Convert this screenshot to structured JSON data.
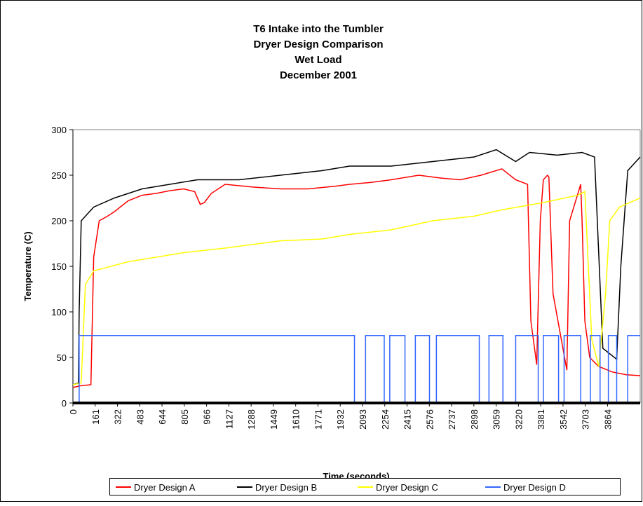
{
  "chart_data": {
    "type": "line",
    "title": [
      "T6 Intake into the Tumbler",
      "Dryer Design Comparison",
      "Wet Load",
      "December 2001"
    ],
    "x_label": "Time (seconds)",
    "y_label": "Temperature (C)",
    "xlim": [
      0,
      4100
    ],
    "xticks": [
      0,
      161,
      322,
      483,
      644,
      805,
      966,
      1127,
      1288,
      1449,
      1610,
      1771,
      1932,
      2093,
      2254,
      2415,
      2576,
      2737,
      2898,
      3059,
      3220,
      3381,
      3542,
      3703,
      3864
    ],
    "ylim": [
      0,
      300
    ],
    "yticks": [
      0,
      50,
      100,
      150,
      200,
      250,
      300
    ],
    "legend": "bottom",
    "series": [
      {
        "name": "Dryer Design A",
        "color": "#ff0000",
        "x": [
          0,
          60,
          130,
          150,
          190,
          250,
          300,
          400,
          500,
          600,
          700,
          800,
          880,
          920,
          950,
          1000,
          1100,
          1300,
          1500,
          1700,
          1900,
          2000,
          2150,
          2300,
          2500,
          2650,
          2800,
          2950,
          3100,
          3200,
          3286,
          3310,
          3352,
          3378,
          3400,
          3430,
          3440,
          3470,
          3570,
          3590,
          3670,
          3680,
          3700,
          3735,
          3800,
          3900,
          4000,
          4100
        ],
        "values": [
          17,
          19,
          20,
          160,
          200,
          205,
          210,
          222,
          228,
          230,
          233,
          235,
          232,
          218,
          220,
          230,
          240,
          237,
          235,
          235,
          238,
          240,
          242,
          245,
          250,
          247,
          245,
          250,
          257,
          245,
          240,
          90,
          42,
          200,
          245,
          250,
          248,
          120,
          36,
          200,
          240,
          200,
          90,
          50,
          40,
          34,
          31,
          30
        ]
      },
      {
        "name": "Dryer Design B",
        "color": "#000000",
        "x": [
          0,
          40,
          45,
          60,
          150,
          300,
          500,
          700,
          900,
          1200,
          1500,
          1800,
          2000,
          2300,
          2600,
          2900,
          3060,
          3200,
          3300,
          3500,
          3680,
          3770,
          3830,
          3930,
          3960,
          4010,
          4100
        ],
        "values": [
          20,
          22,
          100,
          200,
          215,
          225,
          235,
          240,
          245,
          245,
          250,
          255,
          260,
          260,
          265,
          270,
          278,
          265,
          275,
          272,
          275,
          270,
          60,
          48,
          150,
          255,
          270
        ]
      },
      {
        "name": "Dryer Design C",
        "color": "#ffff00",
        "x": [
          0,
          60,
          90,
          150,
          400,
          800,
          1100,
          1500,
          1800,
          2000,
          2300,
          2600,
          2900,
          3100,
          3400,
          3650,
          3700,
          3750,
          3800,
          3850,
          3880,
          3950,
          4100
        ],
        "values": [
          20,
          22,
          130,
          145,
          155,
          165,
          170,
          178,
          180,
          185,
          190,
          200,
          205,
          212,
          220,
          228,
          232,
          70,
          40,
          120,
          200,
          215,
          225
        ]
      },
      {
        "name": "Dryer Design D",
        "color": "#3366ff",
        "x": [
          0,
          45,
          45,
          2035,
          2035,
          2115,
          2115,
          2250,
          2250,
          2290,
          2290,
          2400,
          2400,
          2475,
          2475,
          2577,
          2577,
          2627,
          2627,
          2937,
          2937,
          3007,
          3007,
          3108,
          3108,
          3200,
          3200,
          3363,
          3363,
          3400,
          3400,
          3510,
          3510,
          3550,
          3550,
          3670,
          3670,
          3740,
          3740,
          3810,
          3810,
          3870,
          3870,
          3930,
          3930,
          4010,
          4010,
          4100
        ],
        "values": [
          0,
          0,
          74,
          74,
          0,
          0,
          74,
          74,
          0,
          0,
          74,
          74,
          0,
          0,
          74,
          74,
          0,
          0,
          74,
          74,
          0,
          0,
          74,
          74,
          0,
          0,
          74,
          74,
          0,
          0,
          74,
          74,
          0,
          0,
          74,
          74,
          0,
          0,
          74,
          74,
          0,
          0,
          74,
          74,
          0,
          0,
          74,
          74
        ]
      }
    ]
  }
}
